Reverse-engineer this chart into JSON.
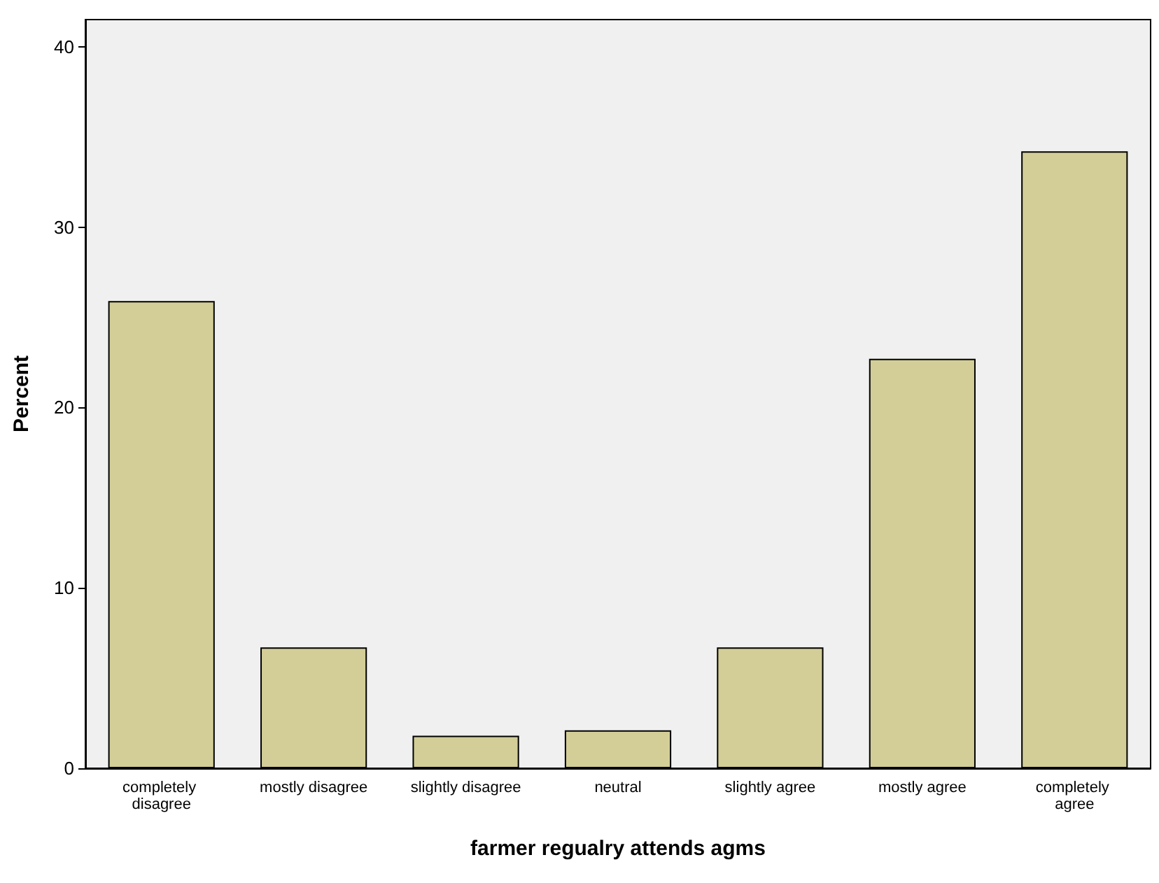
{
  "chart_data": {
    "type": "bar",
    "xlabel": "farmer regualry attends agms",
    "ylabel": "Percent",
    "categories": [
      "completely disagree",
      "mostly disagree",
      "slightly disagree",
      "neutral",
      "slightly agree",
      "mostly agree",
      "completely agree"
    ],
    "values": [
      25.9,
      6.7,
      1.8,
      2.1,
      6.7,
      22.7,
      34.2
    ],
    "color": "#d3ce97",
    "ylim": [
      0,
      41.5
    ],
    "yticks": [
      0,
      10,
      20,
      30,
      40
    ],
    "grid": false
  }
}
